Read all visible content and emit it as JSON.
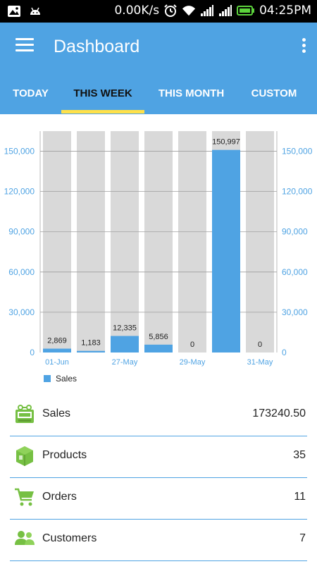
{
  "status_bar": {
    "network_speed": "0.00K/s",
    "time": "04:25PM",
    "icons": [
      "image-icon",
      "android-icon",
      "alarm-icon",
      "wifi-icon",
      "signal-icon",
      "signal-icon",
      "battery-icon"
    ]
  },
  "app_bar": {
    "title": "Dashboard",
    "menu_icon": "hamburger-menu-icon",
    "overflow_icon": "more-vertical-icon"
  },
  "tabs": [
    {
      "label": "TODAY",
      "active": false
    },
    {
      "label": "THIS WEEK",
      "active": true
    },
    {
      "label": "THIS MONTH",
      "active": false
    },
    {
      "label": "CUSTOM",
      "active": false
    }
  ],
  "colors": {
    "primary": "#4fa3e3",
    "accent": "#ffe14a",
    "bar_background": "#d9d9d9",
    "icon_green": "#76c043"
  },
  "chart_data": {
    "type": "bar",
    "categories": [
      "01-Jun",
      "",
      "27-May",
      "",
      "29-May",
      "",
      "31-May"
    ],
    "x_tick_labels": [
      "01-Jun",
      "27-May",
      "29-May",
      "31-May"
    ],
    "series": [
      {
        "name": "Sales",
        "values": [
          2869,
          1183,
          12335,
          5856,
          0,
          150997,
          0
        ]
      }
    ],
    "data_labels": [
      "2,869",
      "1,183",
      "12,335",
      "5,856",
      "0",
      "150,997",
      "0"
    ],
    "ylim": [
      0,
      165000
    ],
    "yticks": [
      0,
      30000,
      60000,
      90000,
      120000,
      150000
    ],
    "ytick_labels": [
      "0",
      "30,000",
      "60,000",
      "90,000",
      "120,000",
      "150,000"
    ],
    "dual_y_axis": true,
    "legend": {
      "placement": "bottom-left",
      "label": "Sales"
    },
    "grid": true
  },
  "summary": [
    {
      "label": "Sales",
      "value": "173240.50",
      "icon": "register-icon"
    },
    {
      "label": "Products",
      "value": "35",
      "icon": "package-icon"
    },
    {
      "label": "Orders",
      "value": "11",
      "icon": "shopping-cart-icon"
    },
    {
      "label": "Customers",
      "value": "7",
      "icon": "customers-icon"
    }
  ]
}
